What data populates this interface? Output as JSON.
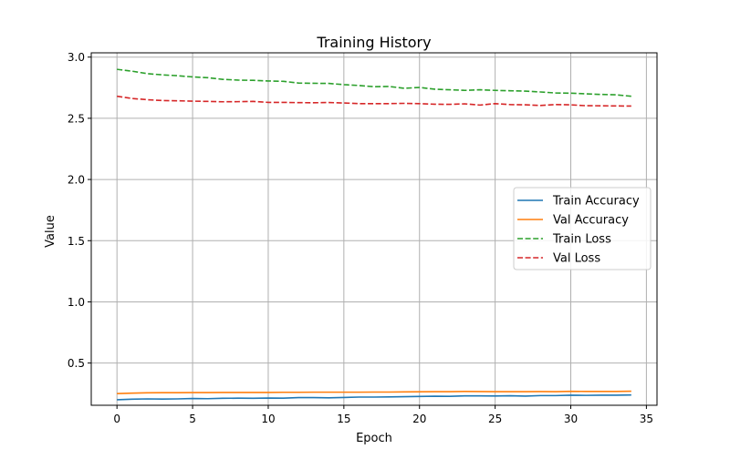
{
  "chart_data": {
    "type": "line",
    "title": "Training History",
    "xlabel": "Epoch",
    "ylabel": "Value",
    "xlim": [
      -1.7,
      35.7
    ],
    "ylim": [
      0.155,
      3.035
    ],
    "xticks": [
      0,
      5,
      10,
      15,
      20,
      25,
      30,
      35
    ],
    "yticks": [
      0.5,
      1.0,
      1.5,
      2.0,
      2.5,
      3.0
    ],
    "xtick_labels": [
      "0",
      "5",
      "10",
      "15",
      "20",
      "25",
      "30",
      "35"
    ],
    "ytick_labels": [
      "0.5",
      "1.0",
      "1.5",
      "2.0",
      "2.5",
      "3.0"
    ],
    "grid": true,
    "legend_position": "center-right",
    "x": [
      0,
      1,
      2,
      3,
      4,
      5,
      6,
      7,
      8,
      9,
      10,
      11,
      12,
      13,
      14,
      15,
      16,
      17,
      18,
      19,
      20,
      21,
      22,
      23,
      24,
      25,
      26,
      27,
      28,
      29,
      30,
      31,
      32,
      33,
      34
    ],
    "series": [
      {
        "name": "Train Accuracy",
        "color": "#1f77b4",
        "dash": "solid",
        "values": [
          0.2,
          0.205,
          0.207,
          0.206,
          0.207,
          0.21,
          0.209,
          0.212,
          0.213,
          0.212,
          0.214,
          0.213,
          0.218,
          0.218,
          0.216,
          0.219,
          0.222,
          0.222,
          0.223,
          0.225,
          0.227,
          0.229,
          0.228,
          0.232,
          0.232,
          0.231,
          0.233,
          0.23,
          0.234,
          0.234,
          0.237,
          0.236,
          0.237,
          0.237,
          0.239
        ]
      },
      {
        "name": "Val Accuracy",
        "color": "#ff7f0e",
        "dash": "solid",
        "values": [
          0.25,
          0.254,
          0.257,
          0.258,
          0.258,
          0.259,
          0.259,
          0.26,
          0.26,
          0.26,
          0.26,
          0.261,
          0.261,
          0.262,
          0.262,
          0.262,
          0.262,
          0.263,
          0.263,
          0.264,
          0.265,
          0.266,
          0.266,
          0.268,
          0.267,
          0.266,
          0.266,
          0.266,
          0.267,
          0.266,
          0.269,
          0.268,
          0.268,
          0.268,
          0.27
        ]
      },
      {
        "name": "Train Loss",
        "color": "#2ca02c",
        "dash": "dashed",
        "values": [
          2.9,
          2.885,
          2.865,
          2.855,
          2.848,
          2.838,
          2.832,
          2.818,
          2.812,
          2.81,
          2.805,
          2.802,
          2.788,
          2.786,
          2.785,
          2.775,
          2.768,
          2.758,
          2.76,
          2.745,
          2.752,
          2.738,
          2.733,
          2.728,
          2.733,
          2.728,
          2.725,
          2.722,
          2.715,
          2.707,
          2.705,
          2.7,
          2.695,
          2.692,
          2.68
        ]
      },
      {
        "name": "Val Loss",
        "color": "#d62728",
        "dash": "dashed",
        "values": [
          2.68,
          2.662,
          2.652,
          2.645,
          2.643,
          2.64,
          2.638,
          2.635,
          2.636,
          2.638,
          2.63,
          2.63,
          2.628,
          2.627,
          2.629,
          2.625,
          2.62,
          2.62,
          2.62,
          2.622,
          2.62,
          2.615,
          2.614,
          2.618,
          2.608,
          2.62,
          2.612,
          2.61,
          2.605,
          2.612,
          2.61,
          2.603,
          2.602,
          2.601,
          2.6
        ]
      }
    ]
  }
}
